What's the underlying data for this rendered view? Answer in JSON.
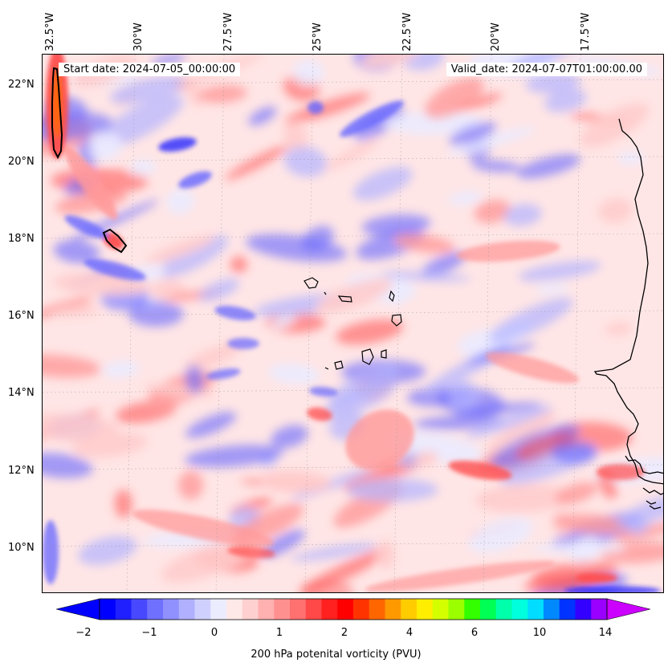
{
  "map": {
    "start_label": "Start date: 2024-07-05_00:00:00",
    "valid_label": "Valid_date: 2024-07-07T01:00:00.00",
    "lon_labels": [
      "32.5°W",
      "30°W",
      "27.5°W",
      "25°W",
      "22.5°W",
      "20°W",
      "17.5°W"
    ],
    "lat_labels": [
      "22°N",
      "20°N",
      "18°N",
      "16°N",
      "14°N",
      "12°N",
      "10°N"
    ],
    "field_colors": {
      "strong_negative": "#1a1aff",
      "negative": "#6666ff",
      "weak_negative": "#b3b3ff",
      "very_weak_negative": "#ebebff",
      "near_zero": "#ffe6e6",
      "weak_positive": "#ffcccc",
      "positive": "#ff9999",
      "strong_positive": "#ff4d4d",
      "extreme": "#ff6600",
      "coast": "#000000"
    }
  },
  "colorbar": {
    "title": "200 hPa potenital vorticity (PVU)",
    "tick_labels": [
      "−2",
      "−1",
      "0",
      "1",
      "2",
      "4",
      "6",
      "10",
      "14"
    ],
    "colors": [
      "#0000ff",
      "#2020ff",
      "#4848ff",
      "#7070ff",
      "#9090ff",
      "#b0b0ff",
      "#d0d0ff",
      "#ececff",
      "#ffe8e8",
      "#ffd0d0",
      "#ffb0b0",
      "#ff9090",
      "#ff7070",
      "#ff4848",
      "#ff2020",
      "#ff0000",
      "#ff3300",
      "#ff6600",
      "#ff9900",
      "#ffcc00",
      "#ffee00",
      "#d4ff00",
      "#9cff00",
      "#33ff00",
      "#00ff55",
      "#00ffaa",
      "#00ffdd",
      "#00ddff",
      "#0088ff",
      "#0033ff",
      "#3300ff",
      "#9900ff"
    ],
    "under_color": "#0000ff",
    "over_color": "#cc00ff"
  }
}
